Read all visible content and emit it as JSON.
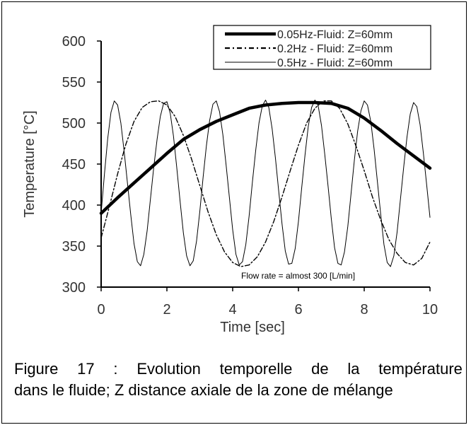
{
  "chart_data": {
    "type": "line",
    "xlabel": "Time [sec]",
    "ylabel": "Temperature [°C]",
    "xlim": [
      0,
      10
    ],
    "ylim": [
      300,
      600
    ],
    "x_ticks": [
      0,
      2,
      4,
      6,
      8,
      10
    ],
    "y_ticks": [
      300,
      350,
      400,
      450,
      500,
      550,
      600
    ],
    "grid": false,
    "legend_position": "top-right",
    "annotation": "Flow rate = almost 300 [L/min]",
    "series": [
      {
        "name": "0.05Hz-Fluid: Z=60mm",
        "style": "thick-solid",
        "x": [
          0,
          0.5,
          1,
          1.5,
          2,
          2.5,
          3,
          3.5,
          4,
          4.5,
          5,
          5.5,
          6,
          6.5,
          7,
          7.5,
          8,
          8.5,
          9,
          9.5,
          10
        ],
        "y": [
          390,
          409,
          427,
          445,
          463,
          480,
          492,
          502,
          510,
          518,
          522,
          524,
          525,
          525,
          524,
          518,
          506,
          491,
          475,
          460,
          445
        ]
      },
      {
        "name": "0.2Hz - Fluid: Z=60mm",
        "style": "dash-dot",
        "x": [
          0,
          0.25,
          0.5,
          0.75,
          1,
          1.25,
          1.5,
          1.75,
          2,
          2.25,
          2.5,
          2.75,
          3,
          3.25,
          3.5,
          3.75,
          4,
          4.25,
          4.5,
          4.75,
          5,
          5.25,
          5.5,
          5.75,
          6,
          6.25,
          6.5,
          6.75,
          7,
          7.25,
          7.5,
          7.75,
          8,
          8.25,
          8.5,
          8.75,
          9,
          9.25,
          9.5,
          9.75,
          10
        ],
        "y": [
          360,
          398,
          438,
          474,
          502,
          519,
          526,
          527,
          522,
          508,
          485,
          456,
          424,
          392,
          364,
          343,
          330,
          325,
          327,
          337,
          355,
          380,
          410,
          442,
          473,
          500,
          518,
          527,
          527,
          518,
          499,
          472,
          442,
          410,
          382,
          358,
          341,
          330,
          327,
          335,
          355
        ]
      },
      {
        "name": "0.5Hz - Fluid: Z=60mm",
        "style": "thin-solid",
        "x": [
          0,
          0.1,
          0.2,
          0.3,
          0.4,
          0.5,
          0.6,
          0.7,
          0.8,
          0.9,
          1,
          1.1,
          1.2,
          1.3,
          1.4,
          1.5,
          1.6,
          1.7,
          1.8,
          1.9,
          2,
          2.1,
          2.2,
          2.3,
          2.4,
          2.5,
          2.6,
          2.7,
          2.8,
          2.9,
          3,
          3.1,
          3.2,
          3.3,
          3.4,
          3.5,
          3.6,
          3.7,
          3.8,
          3.9,
          4,
          4.1,
          4.2,
          4.3,
          4.4,
          4.5,
          4.6,
          4.7,
          4.8,
          4.9,
          5,
          5.1,
          5.2,
          5.3,
          5.4,
          5.5,
          5.6,
          5.7,
          5.8,
          5.9,
          6,
          6.1,
          6.2,
          6.3,
          6.4,
          6.5,
          6.6,
          6.7,
          6.8,
          6.9,
          7,
          7.1,
          7.2,
          7.3,
          7.4,
          7.5,
          7.6,
          7.7,
          7.8,
          7.9,
          8,
          8.1,
          8.2,
          8.3,
          8.4,
          8.5,
          8.6,
          8.7,
          8.8,
          8.9,
          9,
          9.1,
          9.2,
          9.3,
          9.4,
          9.5,
          9.6,
          9.7,
          9.8,
          9.9,
          10
        ],
        "y": [
          390,
          438,
          481,
          513,
          527,
          522,
          500,
          465,
          427,
          389,
          353,
          331,
          326,
          340,
          369,
          408,
          446,
          480,
          508,
          524,
          526,
          512,
          484,
          446,
          405,
          366,
          338,
          326,
          332,
          356,
          392,
          433,
          472,
          503,
          523,
          527,
          514,
          486,
          449,
          409,
          370,
          340,
          327,
          331,
          352,
          387,
          428,
          467,
          500,
          521,
          528,
          519,
          493,
          457,
          417,
          377,
          344,
          328,
          329,
          347,
          380,
          421,
          461,
          496,
          519,
          528,
          521,
          497,
          462,
          423,
          383,
          348,
          329,
          327,
          343,
          374,
          414,
          455,
          490,
          515,
          527,
          522,
          502,
          468,
          429,
          389,
          352,
          330,
          325,
          338,
          367,
          406,
          446,
          483,
          511,
          525,
          520,
          498,
          463,
          424,
          385
        ]
      }
    ]
  },
  "caption": {
    "line1_words": [
      "Figure",
      "17",
      ":",
      "Evolution",
      "temporelle",
      "de",
      "la",
      "température"
    ],
    "line2": "dans le fluide; Z distance axiale de la zone de mélange"
  }
}
